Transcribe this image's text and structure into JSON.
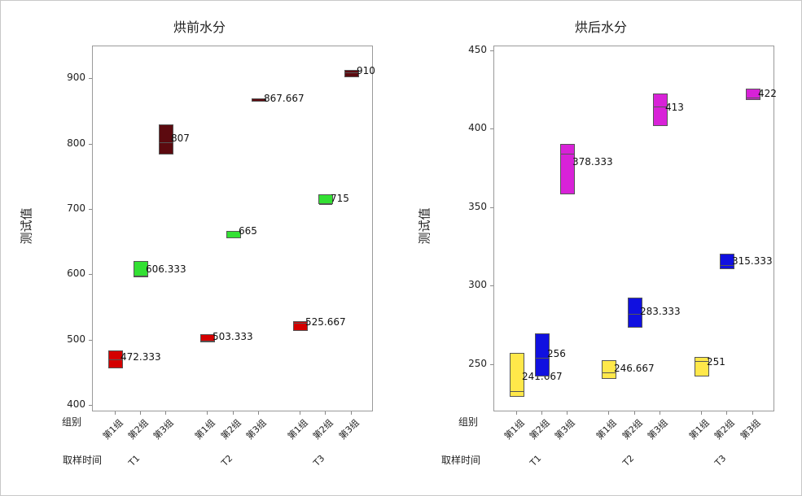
{
  "chart_data": [
    {
      "type": "box",
      "title": "烘前水分",
      "ylabel": "测试值",
      "ylim": [
        390,
        950
      ],
      "yticks": [
        400,
        500,
        600,
        700,
        800,
        900
      ],
      "x_row_labels": {
        "group": "组别",
        "time": "取样时间"
      },
      "categories": [
        "T1-第1组",
        "T1-第2组",
        "T1-第3组",
        "T2-第1组",
        "T2-第2组",
        "T2-第3组",
        "T3-第1组",
        "T3-第2组",
        "T3-第3组"
      ],
      "time_levels": [
        "T1",
        "T2",
        "T3"
      ],
      "group_levels": [
        "第1组",
        "第2组",
        "第3组"
      ],
      "series": [
        {
          "name": "第1组",
          "color": "#d40000",
          "means": [
            472.333,
            503.333,
            525.667
          ]
        },
        {
          "name": "第2组",
          "color": "#33e033",
          "means": [
            606.333,
            665,
            715
          ]
        },
        {
          "name": "第3组",
          "color": "#5c0a0f",
          "means": [
            807,
            867.667,
            910
          ]
        }
      ],
      "boxes": [
        {
          "time": "T1",
          "group": "第1组",
          "low": 457,
          "high": 484,
          "median": 472,
          "mean_label": "472.333",
          "color": "#d40000"
        },
        {
          "time": "T1",
          "group": "第2组",
          "low": 597,
          "high": 621,
          "median": 600,
          "mean_label": "606.333",
          "color": "#33e033"
        },
        {
          "time": "T1",
          "group": "第3组",
          "low": 784,
          "high": 831,
          "median": 804,
          "mean_label": "807",
          "color": "#5c0a0f"
        },
        {
          "time": "T2",
          "group": "第1组",
          "low": 497,
          "high": 510,
          "median": 501,
          "mean_label": "503.333",
          "color": "#d40000"
        },
        {
          "time": "T2",
          "group": "第2组",
          "low": 656,
          "high": 667,
          "median": 659,
          "mean_label": "665",
          "color": "#33e033"
        },
        {
          "time": "T2",
          "group": "第3组",
          "low": 865,
          "high": 870,
          "median": 868,
          "mean_label": "867.667",
          "color": "#5c0a0f"
        },
        {
          "time": "T3",
          "group": "第1组",
          "low": 514,
          "high": 530,
          "median": 528,
          "mean_label": "525.667",
          "color": "#d40000"
        },
        {
          "time": "T3",
          "group": "第2组",
          "low": 708,
          "high": 723,
          "median": 710,
          "mean_label": "715",
          "color": "#33e033"
        },
        {
          "time": "T3",
          "group": "第3组",
          "low": 903,
          "high": 914,
          "median": 911,
          "mean_label": "910",
          "color": "#5c0a0f"
        }
      ]
    },
    {
      "type": "box",
      "title": "烘后水分",
      "ylabel": "测试值",
      "ylim": [
        220,
        453
      ],
      "yticks": [
        250,
        300,
        350,
        400,
        450
      ],
      "x_row_labels": {
        "group": "组别",
        "time": "取样时间"
      },
      "categories": [
        "T1-第1组",
        "T1-第2组",
        "T1-第3组",
        "T2-第1组",
        "T2-第2组",
        "T2-第3组",
        "T3-第1组",
        "T3-第2组",
        "T3-第3组"
      ],
      "time_levels": [
        "T1",
        "T2",
        "T3"
      ],
      "group_levels": [
        "第1组",
        "第2组",
        "第3组"
      ],
      "series": [
        {
          "name": "第1组",
          "color": "#ffe84a",
          "means": [
            241.667,
            246.667,
            251
          ]
        },
        {
          "name": "第2组",
          "color": "#1010e0",
          "means": [
            256,
            283.333,
            315.333
          ]
        },
        {
          "name": "第3组",
          "color": "#d822d8",
          "means": [
            378.333,
            413,
            422
          ]
        }
      ],
      "boxes": [
        {
          "time": "T1",
          "group": "第1组",
          "low": 230,
          "high": 258,
          "median": 234,
          "mean_label": "241.667",
          "color": "#ffe84a"
        },
        {
          "time": "T1",
          "group": "第2组",
          "low": 243,
          "high": 270,
          "median": 255,
          "mean_label": "256",
          "color": "#1010e0"
        },
        {
          "time": "T1",
          "group": "第3组",
          "low": 359,
          "high": 391,
          "median": 385,
          "mean_label": "378.333",
          "color": "#d822d8"
        },
        {
          "time": "T2",
          "group": "第1组",
          "low": 241,
          "high": 253,
          "median": 246,
          "mean_label": "246.667",
          "color": "#ffe84a"
        },
        {
          "time": "T2",
          "group": "第2组",
          "low": 274,
          "high": 293,
          "median": 283,
          "mean_label": "283.333",
          "color": "#1010e0"
        },
        {
          "time": "T2",
          "group": "第3组",
          "low": 402,
          "high": 423,
          "median": 415,
          "mean_label": "413",
          "color": "#d822d8"
        },
        {
          "time": "T3",
          "group": "第1组",
          "low": 243,
          "high": 255,
          "median": 253,
          "mean_label": "251",
          "color": "#ffe84a"
        },
        {
          "time": "T3",
          "group": "第2组",
          "low": 311,
          "high": 321,
          "median": 314,
          "mean_label": "315.333",
          "color": "#1010e0"
        },
        {
          "time": "T3",
          "group": "第3组",
          "low": 419,
          "high": 426,
          "median": 421,
          "mean_label": "422",
          "color": "#d822d8"
        }
      ]
    }
  ],
  "panels": [
    {
      "title": "烘前水分",
      "ylabel": "测试值",
      "row_group": "组别",
      "row_time": "取样时间"
    },
    {
      "title": "烘后水分",
      "ylabel": "测试值",
      "row_group": "组别",
      "row_time": "取样时间"
    }
  ]
}
